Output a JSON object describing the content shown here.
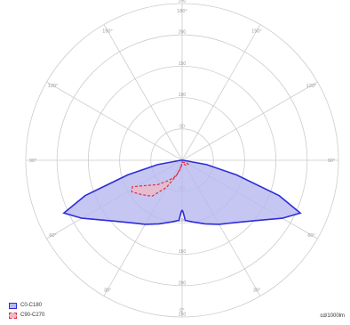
{
  "chart_data": {
    "type": "polar",
    "title": "",
    "radial_ticks": [
      "50",
      "100",
      "150",
      "200",
      "250"
    ],
    "angle_labels": [
      {
        "deg": 180,
        "text": "180°"
      },
      {
        "deg": 150,
        "text": "150°"
      },
      {
        "deg": 120,
        "text": "120°"
      },
      {
        "deg": 90,
        "text": "90°"
      },
      {
        "deg": 60,
        "text": "60°"
      },
      {
        "deg": 30,
        "text": "30°"
      },
      {
        "deg": 0,
        "text": "0°"
      }
    ],
    "unit": "cd/1000lm",
    "series": [
      {
        "name": "C0-C180",
        "color": "#2d2dd8",
        "fill": "#b8b8f0",
        "points": [
          {
            "angle": -90,
            "r": 2
          },
          {
            "angle": -80,
            "r": 40
          },
          {
            "angle": -75,
            "r": 90
          },
          {
            "angle": -70,
            "r": 165
          },
          {
            "angle": -66,
            "r": 207
          },
          {
            "angle": -60,
            "r": 185
          },
          {
            "angle": -50,
            "r": 150
          },
          {
            "angle": -40,
            "r": 130
          },
          {
            "angle": -30,
            "r": 118
          },
          {
            "angle": -20,
            "r": 108
          },
          {
            "angle": -10,
            "r": 100
          },
          {
            "angle": -3,
            "r": 96
          },
          {
            "angle": -1,
            "r": 82
          },
          {
            "angle": 0,
            "r": 80
          },
          {
            "angle": 1,
            "r": 82
          },
          {
            "angle": 3,
            "r": 96
          },
          {
            "angle": 10,
            "r": 100
          },
          {
            "angle": 20,
            "r": 108
          },
          {
            "angle": 30,
            "r": 118
          },
          {
            "angle": 40,
            "r": 130
          },
          {
            "angle": 50,
            "r": 150
          },
          {
            "angle": 60,
            "r": 185
          },
          {
            "angle": 66,
            "r": 207
          },
          {
            "angle": 70,
            "r": 165
          },
          {
            "angle": 75,
            "r": 90
          },
          {
            "angle": 80,
            "r": 40
          },
          {
            "angle": 90,
            "r": 2
          }
        ]
      },
      {
        "name": "C90-C270",
        "color": "#d83040",
        "fill": "#f0b8c6",
        "points": [
          {
            "angle": -10,
            "r": 10
          },
          {
            "angle": -20,
            "r": 25
          },
          {
            "angle": -30,
            "r": 50
          },
          {
            "angle": -40,
            "r": 75
          },
          {
            "angle": -50,
            "r": 85
          },
          {
            "angle": -58,
            "r": 95
          },
          {
            "angle": -62,
            "r": 90
          },
          {
            "angle": -55,
            "r": 70
          },
          {
            "angle": -45,
            "r": 55
          },
          {
            "angle": -35,
            "r": 40
          },
          {
            "angle": -25,
            "r": 30
          },
          {
            "angle": -18,
            "r": 22
          },
          {
            "angle": -12,
            "r": 15
          },
          {
            "angle": -8,
            "r": 10
          },
          {
            "angle": -4,
            "r": 6
          },
          {
            "angle": 0,
            "r": 2
          },
          {
            "angle": 5,
            "r": 3
          },
          {
            "angle": 15,
            "r": 5
          },
          {
            "angle": 25,
            "r": 7
          },
          {
            "angle": 35,
            "r": 9
          },
          {
            "angle": 45,
            "r": 11
          },
          {
            "angle": 55,
            "r": 12
          },
          {
            "angle": 60,
            "r": 10
          },
          {
            "angle": 55,
            "r": 6
          },
          {
            "angle": 30,
            "r": 4
          },
          {
            "angle": 5,
            "r": 3
          }
        ]
      }
    ]
  }
}
